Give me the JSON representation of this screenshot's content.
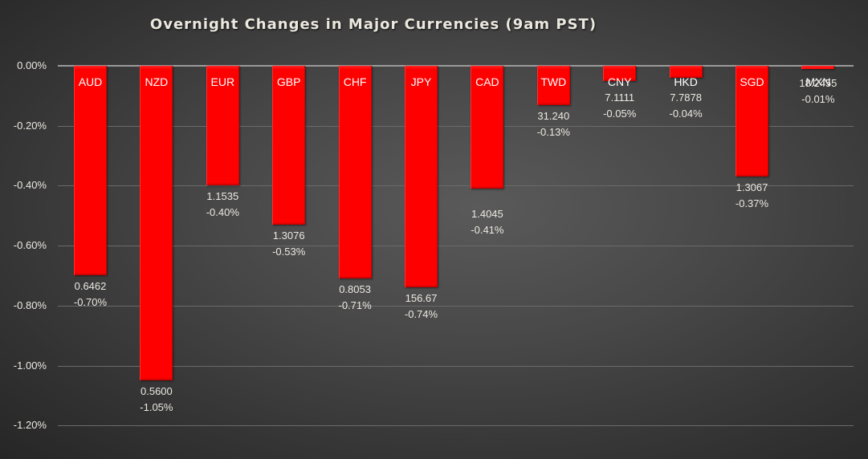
{
  "chart_data": {
    "type": "bar",
    "title": "Overnight Changes in Major Currencies (9am PST)",
    "xlabel": "",
    "ylabel": "",
    "ylim": [
      -1.2,
      0
    ],
    "yticks": [
      "0.00%",
      "-0.20%",
      "-0.40%",
      "-0.60%",
      "-0.80%",
      "-1.00%",
      "-1.20%"
    ],
    "grid": true,
    "legend": "none",
    "categories": [
      "AUD",
      "NZD",
      "EUR",
      "GBP",
      "CHF",
      "JPY",
      "CAD",
      "TWD",
      "CNY",
      "HKD",
      "SGD",
      "MXN"
    ],
    "values": [
      -0.7,
      -1.05,
      -0.4,
      -0.53,
      -0.71,
      -0.74,
      -0.41,
      -0.13,
      -0.05,
      -0.04,
      -0.37,
      -0.01
    ],
    "rates": [
      "0.6462",
      "0.5600",
      "1.1535",
      "1.3076",
      "0.8053",
      "156.67",
      "1.4045",
      "31.240",
      "7.1111",
      "7.7878",
      "1.3067",
      "18.2455"
    ],
    "value_labels": [
      "-0.70%",
      "-1.05%",
      "-0.40%",
      "-0.53%",
      "-0.71%",
      "-0.74%",
      "-0.41%",
      "-0.13%",
      "-0.05%",
      "-0.04%",
      "-0.37%",
      "-0.01%"
    ],
    "colors": {
      "bar": "#ff0000",
      "background": "#3c3c3c",
      "text": "#ece9e2",
      "gridline": "#6a6a6a"
    }
  }
}
